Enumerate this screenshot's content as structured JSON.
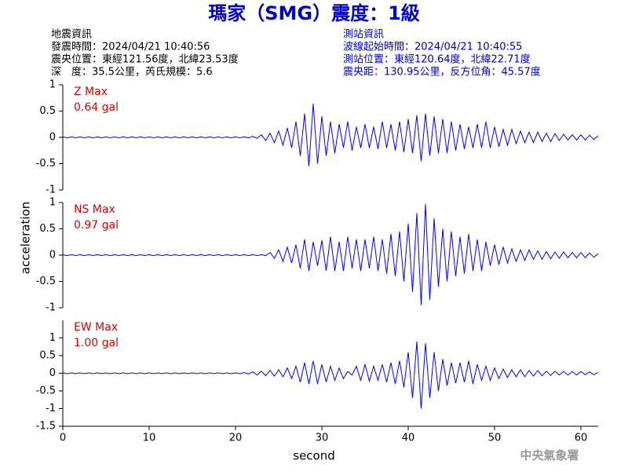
{
  "title": "瑪家（SMG）震度：1級",
  "info_left": [
    "地震資訊",
    "發震時間：2024/04/21 10:40:56",
    "震央位置：東經121.56度，北緯23.53度",
    "深　度：35.5公里，芮氏規模：5.6"
  ],
  "info_right": [
    "測站資訊",
    "波線起始時間：2024/04/21 10:40:55",
    "測站位置：東經120.64度，北緯22.71度",
    "震央距：130.95公里，反方位角：45.57度"
  ],
  "xlabel": "second",
  "ylabel": "acceleration",
  "footer": "中央氣象署",
  "chart_data": [
    {
      "type": "line",
      "label": "Z Max",
      "max_label": "0.64 gal",
      "color": "#0000ff",
      "xlim": [
        0,
        62
      ],
      "ylim": [
        -1,
        1
      ],
      "yticks": [
        -1,
        -0.5,
        0,
        0.5,
        1
      ],
      "x": [
        0,
        0.5,
        1,
        1.5,
        2,
        2.5,
        3,
        3.5,
        4,
        4.5,
        5,
        5.5,
        6,
        6.5,
        7,
        7.5,
        8,
        8.5,
        9,
        9.5,
        10,
        10.5,
        11,
        11.5,
        12,
        12.5,
        13,
        13.5,
        14,
        14.5,
        15,
        15.5,
        16,
        16.5,
        17,
        17.5,
        18,
        18.5,
        19,
        19.5,
        20,
        20.5,
        21,
        21.5,
        22,
        22.5,
        23,
        23.5,
        24,
        24.5,
        25,
        25.5,
        26,
        26.5,
        27,
        27.5,
        28,
        28.5,
        29,
        29.5,
        30,
        30.5,
        31,
        31.5,
        32,
        32.5,
        33,
        33.5,
        34,
        34.5,
        35,
        35.5,
        36,
        36.5,
        37,
        37.5,
        38,
        38.5,
        39,
        39.5,
        40,
        40.5,
        41,
        41.5,
        42,
        42.5,
        43,
        43.5,
        44,
        44.5,
        45,
        45.5,
        46,
        46.5,
        47,
        47.5,
        48,
        48.5,
        49,
        49.5,
        50,
        50.5,
        51,
        51.5,
        52,
        52.5,
        53,
        53.5,
        54,
        54.5,
        55,
        55.5,
        56,
        56.5,
        57,
        57.5,
        58,
        58.5,
        59,
        59.5,
        60,
        60.5,
        61,
        61.5,
        62
      ],
      "values": [
        0.01,
        -0.01,
        0.01,
        -0.01,
        0.01,
        -0.01,
        0.01,
        -0.01,
        0.01,
        -0.01,
        0.01,
        -0.01,
        0.01,
        -0.01,
        0.01,
        -0.01,
        0.01,
        -0.01,
        0.01,
        -0.01,
        0.01,
        -0.01,
        0.01,
        -0.01,
        0.01,
        -0.01,
        0.01,
        -0.01,
        0.01,
        -0.01,
        0.01,
        -0.01,
        0.01,
        -0.01,
        0.01,
        -0.01,
        0.01,
        -0.01,
        0.01,
        -0.01,
        0.01,
        -0.01,
        0.01,
        -0.01,
        0.02,
        -0.02,
        0.05,
        -0.06,
        0.08,
        -0.1,
        0.12,
        -0.15,
        0.18,
        -0.2,
        0.3,
        -0.35,
        0.45,
        -0.55,
        0.64,
        -0.5,
        0.4,
        -0.35,
        0.3,
        -0.3,
        0.25,
        -0.2,
        0.3,
        -0.25,
        0.2,
        -0.2,
        0.25,
        -0.2,
        0.2,
        -0.22,
        0.3,
        -0.2,
        0.25,
        -0.25,
        0.3,
        -0.28,
        0.35,
        -0.3,
        0.42,
        -0.45,
        0.45,
        -0.35,
        0.4,
        -0.3,
        0.35,
        -0.3,
        0.3,
        -0.25,
        0.25,
        -0.22,
        0.2,
        -0.2,
        0.25,
        -0.2,
        0.3,
        -0.2,
        0.2,
        -0.18,
        0.15,
        -0.15,
        0.15,
        -0.12,
        0.12,
        -0.1,
        0.1,
        -0.1,
        0.1,
        -0.08,
        0.08,
        -0.08,
        0.07,
        -0.06,
        0.06,
        -0.05,
        0.05,
        -0.05,
        0.05,
        -0.05,
        0.04,
        -0.04,
        0.03
      ]
    },
    {
      "type": "line",
      "label": "NS Max",
      "max_label": "0.97 gal",
      "color": "#0000ff",
      "xlim": [
        0,
        62
      ],
      "ylim": [
        -1,
        1
      ],
      "yticks": [
        -1,
        -0.5,
        0,
        0.5,
        1
      ],
      "x": [
        0,
        0.5,
        1,
        1.5,
        2,
        2.5,
        3,
        3.5,
        4,
        4.5,
        5,
        5.5,
        6,
        6.5,
        7,
        7.5,
        8,
        8.5,
        9,
        9.5,
        10,
        10.5,
        11,
        11.5,
        12,
        12.5,
        13,
        13.5,
        14,
        14.5,
        15,
        15.5,
        16,
        16.5,
        17,
        17.5,
        18,
        18.5,
        19,
        19.5,
        20,
        20.5,
        21,
        21.5,
        22,
        22.5,
        23,
        23.5,
        24,
        24.5,
        25,
        25.5,
        26,
        26.5,
        27,
        27.5,
        28,
        28.5,
        29,
        29.5,
        30,
        30.5,
        31,
        31.5,
        32,
        32.5,
        33,
        33.5,
        34,
        34.5,
        35,
        35.5,
        36,
        36.5,
        37,
        37.5,
        38,
        38.5,
        39,
        39.5,
        40,
        40.5,
        41,
        41.5,
        42,
        42.5,
        43,
        43.5,
        44,
        44.5,
        45,
        45.5,
        46,
        46.5,
        47,
        47.5,
        48,
        48.5,
        49,
        49.5,
        50,
        50.5,
        51,
        51.5,
        52,
        52.5,
        53,
        53.5,
        54,
        54.5,
        55,
        55.5,
        56,
        56.5,
        57,
        57.5,
        58,
        58.5,
        59,
        59.5,
        60,
        60.5,
        61,
        61.5,
        62
      ],
      "values": [
        0.01,
        -0.01,
        0.01,
        -0.01,
        0.01,
        -0.01,
        0.01,
        -0.01,
        0.01,
        -0.01,
        0.01,
        -0.01,
        0.01,
        -0.01,
        0.01,
        -0.01,
        0.01,
        -0.01,
        0.01,
        -0.01,
        0.01,
        -0.01,
        0.01,
        -0.01,
        0.01,
        -0.01,
        0.01,
        -0.01,
        0.01,
        -0.01,
        0.01,
        -0.01,
        0.01,
        -0.01,
        0.01,
        -0.01,
        0.01,
        -0.01,
        0.01,
        -0.01,
        0.01,
        -0.01,
        0.01,
        -0.01,
        0.01,
        -0.01,
        0.01,
        -0.01,
        0.05,
        -0.06,
        0.1,
        -0.12,
        0.15,
        -0.15,
        0.2,
        -0.25,
        0.3,
        -0.3,
        0.25,
        -0.2,
        0.28,
        -0.3,
        0.35,
        -0.3,
        0.25,
        -0.3,
        0.35,
        -0.25,
        0.3,
        -0.3,
        0.3,
        -0.25,
        0.35,
        -0.3,
        0.3,
        -0.35,
        0.4,
        -0.4,
        0.45,
        -0.5,
        0.6,
        -0.7,
        0.8,
        -0.95,
        0.97,
        -0.85,
        0.7,
        -0.6,
        0.5,
        -0.5,
        0.45,
        -0.4,
        0.35,
        -0.35,
        0.4,
        -0.3,
        0.3,
        -0.3,
        0.25,
        -0.2,
        0.2,
        -0.18,
        0.15,
        -0.15,
        0.12,
        -0.12,
        0.1,
        -0.1,
        0.1,
        -0.08,
        0.08,
        -0.08,
        0.07,
        -0.07,
        0.06,
        -0.06,
        0.06,
        -0.05,
        0.05,
        -0.05,
        0.05,
        -0.05,
        0.04,
        -0.04,
        0.03
      ]
    },
    {
      "type": "line",
      "label": "EW Max",
      "max_label": "1.00 gal",
      "color": "#0000ff",
      "xlim": [
        0,
        62
      ],
      "ylim": [
        -1.5,
        1.5
      ],
      "yticks": [
        -1.5,
        -1,
        -0.5,
        0,
        0.5,
        1
      ],
      "xticks": [
        0,
        10,
        20,
        30,
        40,
        50,
        60
      ],
      "x": [
        0,
        0.5,
        1,
        1.5,
        2,
        2.5,
        3,
        3.5,
        4,
        4.5,
        5,
        5.5,
        6,
        6.5,
        7,
        7.5,
        8,
        8.5,
        9,
        9.5,
        10,
        10.5,
        11,
        11.5,
        12,
        12.5,
        13,
        13.5,
        14,
        14.5,
        15,
        15.5,
        16,
        16.5,
        17,
        17.5,
        18,
        18.5,
        19,
        19.5,
        20,
        20.5,
        21,
        21.5,
        22,
        22.5,
        23,
        23.5,
        24,
        24.5,
        25,
        25.5,
        26,
        26.5,
        27,
        27.5,
        28,
        28.5,
        29,
        29.5,
        30,
        30.5,
        31,
        31.5,
        32,
        32.5,
        33,
        33.5,
        34,
        34.5,
        35,
        35.5,
        36,
        36.5,
        37,
        37.5,
        38,
        38.5,
        39,
        39.5,
        40,
        40.5,
        41,
        41.5,
        42,
        42.5,
        43,
        43.5,
        44,
        44.5,
        45,
        45.5,
        46,
        46.5,
        47,
        47.5,
        48,
        48.5,
        49,
        49.5,
        50,
        50.5,
        51,
        51.5,
        52,
        52.5,
        53,
        53.5,
        54,
        54.5,
        55,
        55.5,
        56,
        56.5,
        57,
        57.5,
        58,
        58.5,
        59,
        59.5,
        60,
        60.5,
        61,
        61.5,
        62
      ],
      "values": [
        0.01,
        -0.01,
        0.01,
        -0.01,
        0.01,
        -0.01,
        0.01,
        -0.01,
        0.01,
        -0.01,
        0.01,
        -0.01,
        0.01,
        -0.01,
        0.01,
        -0.01,
        0.01,
        -0.01,
        0.01,
        -0.01,
        0.01,
        -0.01,
        0.01,
        -0.01,
        0.01,
        -0.01,
        0.01,
        -0.01,
        0.01,
        -0.01,
        0.01,
        -0.01,
        0.01,
        -0.01,
        0.01,
        -0.01,
        0.01,
        -0.01,
        0.01,
        -0.01,
        0.01,
        -0.01,
        0.02,
        -0.02,
        0.04,
        -0.05,
        0.06,
        -0.07,
        0.08,
        -0.08,
        0.1,
        -0.1,
        0.15,
        -0.15,
        0.2,
        -0.25,
        0.3,
        -0.3,
        0.35,
        -0.3,
        0.25,
        -0.25,
        0.2,
        -0.2,
        0.15,
        -0.15,
        0.05,
        -0.05,
        0.2,
        -0.2,
        0.25,
        -0.22,
        0.2,
        -0.2,
        0.25,
        -0.25,
        0.3,
        -0.3,
        0.35,
        -0.4,
        0.6,
        -0.7,
        0.9,
        -1.0,
        0.85,
        -0.7,
        0.6,
        -0.5,
        0.4,
        -0.35,
        0.3,
        -0.28,
        0.3,
        -0.25,
        0.35,
        -0.3,
        0.25,
        -0.2,
        0.2,
        -0.2,
        0.15,
        -0.15,
        0.12,
        -0.12,
        0.1,
        -0.1,
        0.1,
        -0.1,
        0.08,
        -0.08,
        0.08,
        -0.07,
        0.06,
        -0.06,
        0.06,
        -0.05,
        0.05,
        -0.05,
        0.05,
        -0.05,
        0.05,
        -0.04,
        0.04,
        -0.04,
        0.03
      ]
    }
  ]
}
